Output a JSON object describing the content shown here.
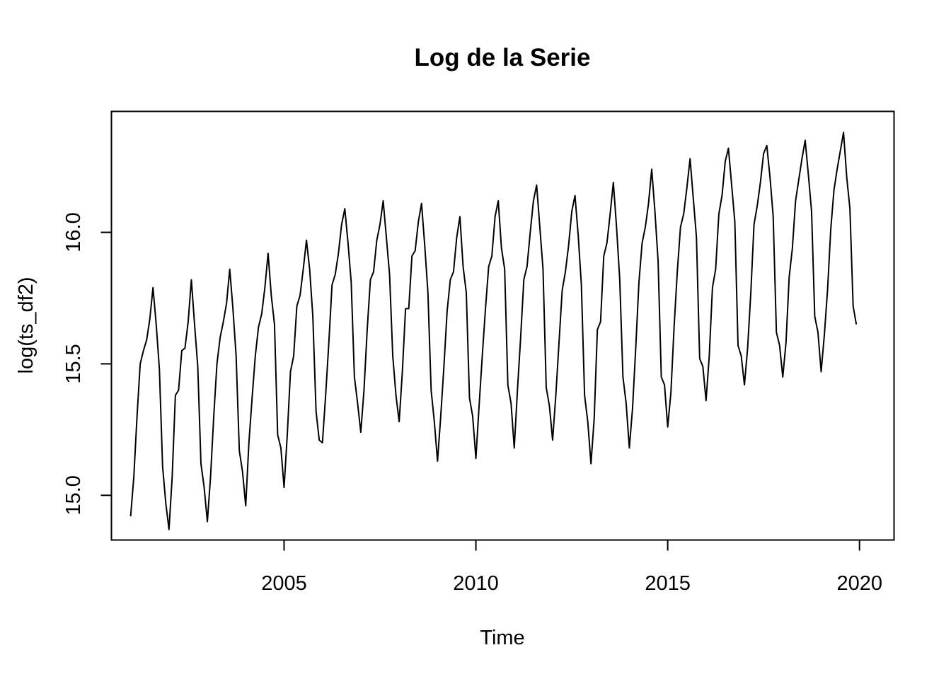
{
  "chart_data": {
    "type": "line",
    "title": "Log de la Serie",
    "xlabel": "Time",
    "ylabel": "log(ts_df2)",
    "xlim": [
      2000.5,
      2020.9
    ],
    "ylim": [
      14.83,
      16.46
    ],
    "xticks": [
      2005,
      2010,
      2015,
      2020
    ],
    "yticks": [
      15.0,
      15.5,
      16.0
    ],
    "xtick_labels": [
      "2005",
      "2010",
      "2015",
      "2020"
    ],
    "ytick_labels": [
      "15.0",
      "15.5",
      "16.0"
    ],
    "grid": false,
    "legend": "none",
    "line_color": "#000000",
    "series": [
      {
        "start": 2001.0,
        "frequency": 12,
        "values": [
          14.92,
          15.07,
          15.3,
          15.5,
          15.55,
          15.59,
          15.67,
          15.79,
          15.65,
          15.48,
          15.11,
          14.97,
          14.87,
          15.07,
          15.38,
          15.4,
          15.55,
          15.56,
          15.66,
          15.82,
          15.65,
          15.49,
          15.12,
          15.03,
          14.9,
          15.07,
          15.3,
          15.5,
          15.6,
          15.66,
          15.73,
          15.86,
          15.71,
          15.53,
          15.17,
          15.09,
          14.96,
          15.2,
          15.37,
          15.53,
          15.64,
          15.69,
          15.79,
          15.92,
          15.76,
          15.65,
          15.23,
          15.18,
          15.03,
          15.23,
          15.47,
          15.53,
          15.72,
          15.76,
          15.86,
          15.97,
          15.86,
          15.68,
          15.32,
          15.21,
          15.2,
          15.38,
          15.58,
          15.8,
          15.84,
          15.92,
          16.03,
          16.09,
          15.96,
          15.81,
          15.45,
          15.35,
          15.24,
          15.4,
          15.63,
          15.82,
          15.85,
          15.97,
          16.03,
          16.12,
          15.98,
          15.84,
          15.53,
          15.38,
          15.28,
          15.47,
          15.71,
          15.71,
          15.91,
          15.93,
          16.04,
          16.11,
          15.95,
          15.77,
          15.4,
          15.28,
          15.13,
          15.3,
          15.49,
          15.7,
          15.82,
          15.85,
          15.98,
          16.06,
          15.87,
          15.77,
          15.37,
          15.3,
          15.14,
          15.34,
          15.53,
          15.71,
          15.87,
          15.91,
          16.06,
          16.12,
          15.94,
          15.86,
          15.42,
          15.35,
          15.18,
          15.4,
          15.6,
          15.82,
          15.87,
          16.0,
          16.12,
          16.18,
          16.02,
          15.86,
          15.41,
          15.34,
          15.21,
          15.38,
          15.58,
          15.78,
          15.85,
          15.95,
          16.08,
          16.14,
          15.99,
          15.8,
          15.38,
          15.28,
          15.12,
          15.29,
          15.63,
          15.66,
          15.91,
          15.96,
          16.07,
          16.19,
          16.02,
          15.82,
          15.45,
          15.35,
          15.18,
          15.33,
          15.56,
          15.81,
          15.96,
          16.02,
          16.11,
          16.24,
          16.08,
          15.89,
          15.45,
          15.42,
          15.26,
          15.39,
          15.64,
          15.85,
          16.02,
          16.07,
          16.17,
          16.28,
          16.13,
          15.98,
          15.52,
          15.49,
          15.36,
          15.53,
          15.79,
          15.86,
          16.07,
          16.14,
          16.27,
          16.32,
          16.18,
          16.04,
          15.57,
          15.53,
          15.42,
          15.56,
          15.77,
          16.03,
          16.1,
          16.19,
          16.3,
          16.33,
          16.21,
          16.06,
          15.62,
          15.57,
          15.45,
          15.58,
          15.83,
          15.94,
          16.12,
          16.2,
          16.28,
          16.35,
          16.22,
          16.08,
          15.68,
          15.62,
          15.47,
          15.61,
          15.78,
          16.01,
          16.16,
          16.24,
          16.31,
          16.38,
          16.21,
          16.09,
          15.72,
          15.65
        ]
      }
    ]
  }
}
